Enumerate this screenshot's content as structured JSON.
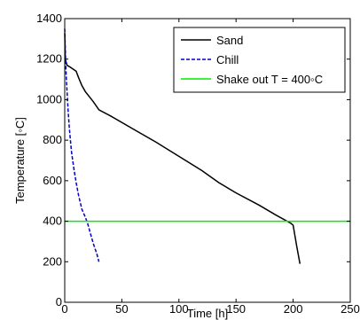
{
  "chart_data": {
    "type": "line",
    "title": "",
    "xlabel": "Time [h]",
    "ylabel": "Temperature [◦C]",
    "xlim": [
      0,
      250
    ],
    "ylim": [
      0,
      1400
    ],
    "xticks": [
      0,
      50,
      100,
      150,
      200,
      250
    ],
    "yticks": [
      0,
      200,
      400,
      600,
      800,
      1000,
      1200,
      1400
    ],
    "xtick_labels": [
      "0",
      "50",
      "100",
      "150",
      "200",
      "250"
    ],
    "ytick_labels": [
      "0",
      "200",
      "400",
      "600",
      "800",
      "1000",
      "1200",
      "1400"
    ],
    "grid": false,
    "legend_position": "top-right",
    "series": [
      {
        "name": "Sand",
        "color": "#000000",
        "dash": "solid",
        "x": [
          0,
          0.5,
          2,
          5,
          10,
          12,
          15,
          18,
          25,
          30,
          40,
          60,
          80,
          100,
          120,
          135,
          150,
          170,
          185,
          198,
          200,
          203,
          206
        ],
        "y": [
          1330,
          1200,
          1170,
          1160,
          1140,
          1110,
          1070,
          1040,
          990,
          950,
          920,
          855,
          790,
          720,
          650,
          590,
          540,
          480,
          430,
          390,
          380,
          280,
          190
        ]
      },
      {
        "name": "Chill",
        "color": "#0000cc",
        "dash": "dashed",
        "x": [
          0,
          1,
          2,
          3,
          4,
          5,
          6,
          8,
          10,
          12,
          15,
          18,
          20,
          22,
          25,
          28,
          30
        ],
        "y": [
          1350,
          1150,
          1040,
          940,
          860,
          800,
          740,
          660,
          590,
          530,
          460,
          420,
          390,
          350,
          290,
          240,
          200
        ]
      },
      {
        "name": "Shake out T = 400◦C",
        "color": "#00ee00",
        "dash": "solid",
        "x": [
          0,
          250
        ],
        "y": [
          400,
          400
        ]
      }
    ]
  }
}
